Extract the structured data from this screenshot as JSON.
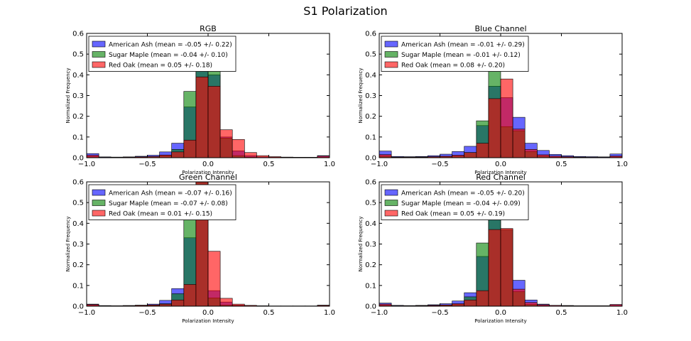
{
  "suptitle": "S1 Polarization",
  "series_style": [
    {
      "name": "American Ash",
      "color": "#0000ff"
    },
    {
      "name": "Sugar Maple",
      "color": "#008000"
    },
    {
      "name": "Red Oak",
      "color": "#ff0000"
    }
  ],
  "chart_data": [
    {
      "type": "bar",
      "title": "RGB",
      "xlabel": "Polarization Intensity",
      "ylabel": "Normalized Frequency",
      "xlim": [
        -1.0,
        1.0
      ],
      "ylim": [
        0,
        0.6
      ],
      "xticks": [
        "−1.0",
        "−0.5",
        "0.0",
        "0.5",
        "1.0"
      ],
      "yticks": [
        "0.0",
        "0.1",
        "0.2",
        "0.3",
        "0.4",
        "0.5",
        "0.6"
      ],
      "legend_position": "top-left",
      "bin_edges": [
        -1.0,
        -0.9,
        -0.8,
        -0.7,
        -0.6,
        -0.5,
        -0.4,
        -0.3,
        -0.2,
        -0.1,
        0.0,
        0.1,
        0.2,
        0.3,
        0.4,
        0.5,
        0.6,
        0.7,
        0.8,
        0.9,
        1.0
      ],
      "series": [
        {
          "name": "American Ash",
          "label": "American Ash (mean = -0.05 +/- 0.22)",
          "values": [
            0.02,
            0.004,
            0.003,
            0.004,
            0.007,
            0.012,
            0.028,
            0.07,
            0.245,
            0.42,
            0.4,
            0.1,
            0.033,
            0.01,
            0.004,
            0.003,
            0.002,
            0.002,
            0.002,
            0.01
          ]
        },
        {
          "name": "Sugar Maple",
          "label": "Sugar Maple (mean = -0.04 +/- 0.10)",
          "values": [
            0.005,
            0.001,
            0.001,
            0.002,
            0.003,
            0.005,
            0.01,
            0.04,
            0.32,
            0.44,
            0.42,
            0.095,
            0.01,
            0.003,
            0.001,
            0.001,
            0.001,
            0.001,
            0.001,
            0.002
          ]
        },
        {
          "name": "Red Oak",
          "label": "Red Oak (mean = 0.05 +/- 0.18)",
          "values": [
            0.012,
            0.002,
            0.002,
            0.003,
            0.004,
            0.006,
            0.013,
            0.028,
            0.085,
            0.39,
            0.345,
            0.135,
            0.088,
            0.025,
            0.01,
            0.005,
            0.003,
            0.002,
            0.002,
            0.008
          ]
        }
      ]
    },
    {
      "type": "bar",
      "title": "Blue Channel",
      "xlabel": "Polarization Intensity",
      "ylabel": "Normalized Frequency",
      "xlim": [
        -1.0,
        1.0
      ],
      "ylim": [
        0,
        0.6
      ],
      "xticks": [
        "−1.0",
        "−0.5",
        "0.0",
        "0.5",
        "1.0"
      ],
      "yticks": [
        "0.0",
        "0.1",
        "0.2",
        "0.3",
        "0.4",
        "0.5",
        "0.6"
      ],
      "legend_position": "top-left",
      "bin_edges": [
        -1.0,
        -0.9,
        -0.8,
        -0.7,
        -0.6,
        -0.5,
        -0.4,
        -0.3,
        -0.2,
        -0.1,
        0.0,
        0.1,
        0.2,
        0.3,
        0.4,
        0.5,
        0.6,
        0.7,
        0.8,
        0.9,
        1.0
      ],
      "series": [
        {
          "name": "American Ash",
          "label": "American Ash (mean = -0.01 +/- 0.29)",
          "values": [
            0.032,
            0.006,
            0.005,
            0.006,
            0.01,
            0.017,
            0.03,
            0.055,
            0.155,
            0.345,
            0.29,
            0.195,
            0.07,
            0.035,
            0.016,
            0.01,
            0.006,
            0.005,
            0.004,
            0.018
          ]
        },
        {
          "name": "Sugar Maple",
          "label": "Sugar Maple (mean = -0.01 +/- 0.12)",
          "values": [
            0.008,
            0.002,
            0.002,
            0.003,
            0.004,
            0.005,
            0.008,
            0.025,
            0.178,
            0.43,
            0.15,
            0.13,
            0.03,
            0.008,
            0.003,
            0.002,
            0.001,
            0.001,
            0.001,
            0.004
          ]
        },
        {
          "name": "Red Oak",
          "label": "Red Oak (mean = 0.08 +/- 0.20)",
          "values": [
            0.015,
            0.003,
            0.003,
            0.003,
            0.005,
            0.007,
            0.012,
            0.025,
            0.07,
            0.285,
            0.38,
            0.138,
            0.04,
            0.014,
            0.008,
            0.005,
            0.003,
            0.002,
            0.002,
            0.008
          ]
        }
      ]
    },
    {
      "type": "bar",
      "title": "Green Channel",
      "xlabel": "Polarization Intensity",
      "ylabel": "Normalized Frequency",
      "xlim": [
        -1.0,
        1.0
      ],
      "ylim": [
        0,
        0.6
      ],
      "xticks": [
        "−1.0",
        "−0.5",
        "0.0",
        "0.5",
        "1.0"
      ],
      "yticks": [
        "0.0",
        "0.1",
        "0.2",
        "0.3",
        "0.4",
        "0.5",
        "0.6"
      ],
      "legend_position": "top-left",
      "bin_edges": [
        -1.0,
        -0.9,
        -0.8,
        -0.7,
        -0.6,
        -0.5,
        -0.4,
        -0.3,
        -0.2,
        -0.1,
        0.0,
        0.1,
        0.2,
        0.3,
        0.4,
        0.5,
        0.6,
        0.7,
        0.8,
        0.9,
        1.0
      ],
      "series": [
        {
          "name": "American Ash",
          "label": "American Ash (mean = -0.07 +/- 0.16)",
          "values": [
            0.01,
            0.003,
            0.002,
            0.003,
            0.005,
            0.01,
            0.028,
            0.085,
            0.33,
            0.6,
            0.075,
            0.02,
            0.005,
            0.002,
            0.001,
            0.001,
            0.001,
            0.001,
            0.001,
            0.005
          ]
        },
        {
          "name": "Sugar Maple",
          "label": "Sugar Maple (mean = -0.07 +/- 0.08)",
          "values": [
            0.004,
            0.001,
            0.001,
            0.002,
            0.003,
            0.005,
            0.012,
            0.06,
            0.43,
            0.6,
            0.04,
            0.005,
            0.002,
            0.001,
            0.001,
            0.001,
            0.001,
            0.001,
            0.001,
            0.002
          ]
        },
        {
          "name": "Red Oak",
          "label": "Red Oak (mean = 0.01 +/- 0.15)",
          "values": [
            0.008,
            0.002,
            0.002,
            0.003,
            0.004,
            0.006,
            0.01,
            0.03,
            0.105,
            0.6,
            0.265,
            0.038,
            0.01,
            0.004,
            0.002,
            0.001,
            0.001,
            0.001,
            0.001,
            0.004
          ]
        }
      ]
    },
    {
      "type": "bar",
      "title": "Red Channel",
      "xlabel": "Polarization Intensity",
      "ylabel": "Normalized Frequency",
      "xlim": [
        -1.0,
        1.0
      ],
      "ylim": [
        0,
        0.6
      ],
      "xticks": [
        "−1.0",
        "−0.5",
        "0.0",
        "0.5",
        "1.0"
      ],
      "yticks": [
        "0.0",
        "0.1",
        "0.2",
        "0.3",
        "0.4",
        "0.5",
        "0.6"
      ],
      "legend_position": "top-left",
      "bin_edges": [
        -1.0,
        -0.9,
        -0.8,
        -0.7,
        -0.6,
        -0.5,
        -0.4,
        -0.3,
        -0.2,
        -0.1,
        0.0,
        0.1,
        0.2,
        0.3,
        0.4,
        0.5,
        0.6,
        0.7,
        0.8,
        0.9,
        1.0
      ],
      "series": [
        {
          "name": "American Ash",
          "label": "American Ash (mean = -0.05 +/- 0.20)",
          "values": [
            0.015,
            0.004,
            0.003,
            0.004,
            0.007,
            0.012,
            0.025,
            0.065,
            0.24,
            0.43,
            0.37,
            0.125,
            0.03,
            0.01,
            0.004,
            0.003,
            0.002,
            0.002,
            0.002,
            0.008
          ]
        },
        {
          "name": "Sugar Maple",
          "label": "Sugar Maple (mean = -0.04 +/- 0.09)",
          "values": [
            0.004,
            0.001,
            0.001,
            0.002,
            0.003,
            0.005,
            0.01,
            0.045,
            0.305,
            0.44,
            0.37,
            0.07,
            0.008,
            0.002,
            0.001,
            0.001,
            0.001,
            0.001,
            0.001,
            0.002
          ]
        },
        {
          "name": "Red Oak",
          "label": "Red Oak (mean = 0.05 +/- 0.19)",
          "values": [
            0.01,
            0.002,
            0.002,
            0.003,
            0.004,
            0.006,
            0.012,
            0.03,
            0.075,
            0.37,
            0.375,
            0.082,
            0.018,
            0.007,
            0.004,
            0.003,
            0.002,
            0.002,
            0.002,
            0.008
          ]
        }
      ]
    }
  ]
}
